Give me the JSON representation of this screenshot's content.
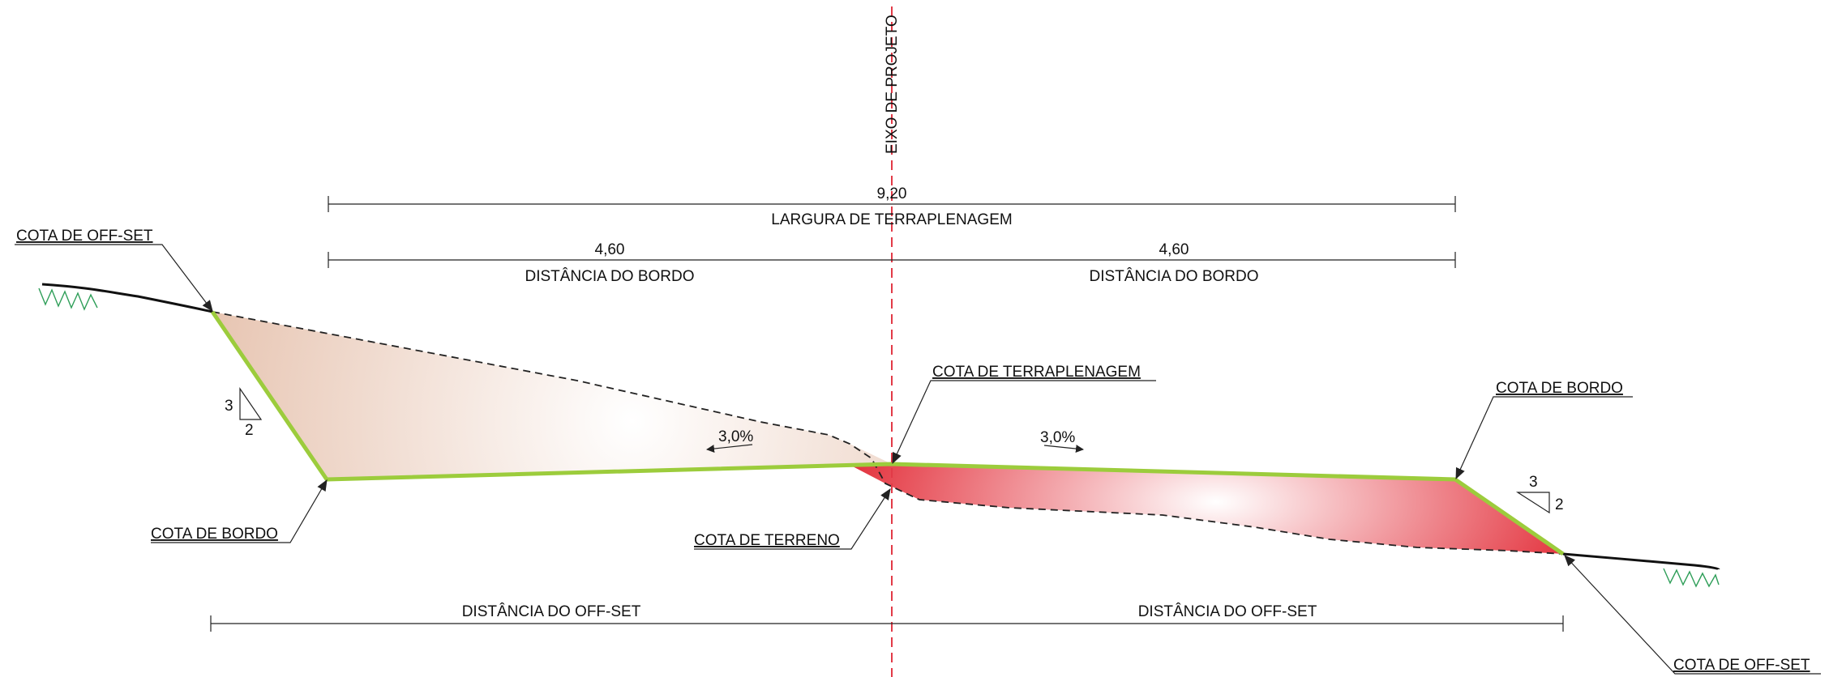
{
  "axis_label": "EIXO DE PROJETO",
  "dimensions": {
    "total_width_value": "9,20",
    "total_width_label": "LARGURA DE TERRAPLENAGEM",
    "left_edge_value": "4,60",
    "left_edge_label": "DISTÂNCIA DO BORDO",
    "right_edge_value": "4,60",
    "right_edge_label": "DISTÂNCIA DO BORDO",
    "left_offset_label": "DISTÂNCIA DO OFF-SET",
    "right_offset_label": "DISTÂNCIA DO OFF-SET"
  },
  "callouts": {
    "left_offset": "COTA DE OFF-SET",
    "left_edge": "COTA DE BORDO",
    "earthwork": "COTA DE TERRAPLENAGEM",
    "terrain": "COTA DE TERRENO",
    "right_edge": "COTA DE BORDO",
    "right_offset": "COTA DE OFF-SET"
  },
  "slopes": {
    "left_crossfall": "3,0%",
    "right_crossfall": "3,0%",
    "left_ratio_vertical": "3",
    "left_ratio_horizontal": "2",
    "right_ratio_vertical": "3",
    "right_ratio_horizontal": "2"
  },
  "colors": {
    "platform": "#9ccc3c",
    "cut_fill": "#e9c8b6",
    "embankment_fill": "#e2333e",
    "axis": "#e23a47",
    "terrain_hatch": "#2e9e58"
  }
}
